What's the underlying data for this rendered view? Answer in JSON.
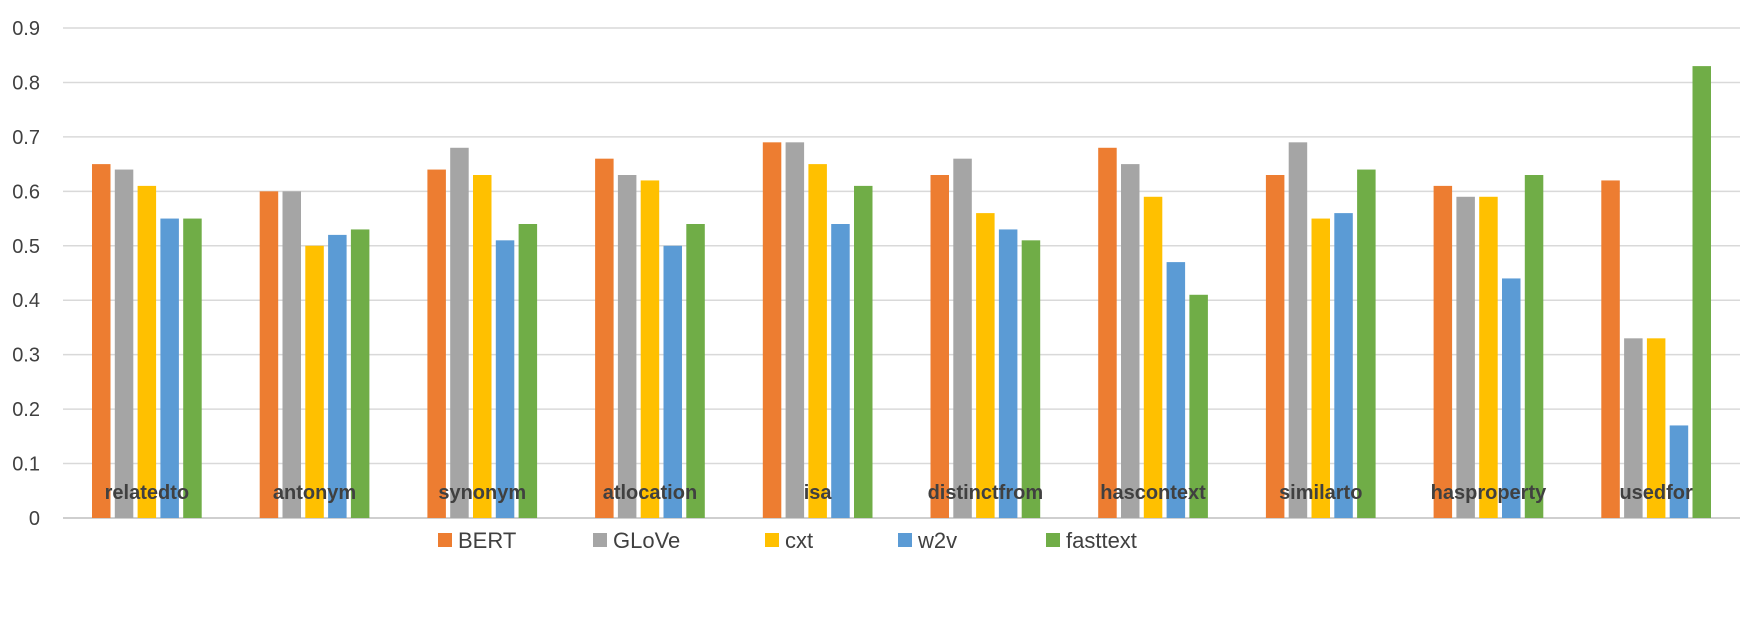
{
  "chart_data": {
    "type": "bar",
    "title": "",
    "xlabel": "",
    "ylabel": "",
    "ylim": [
      0,
      0.9
    ],
    "y_ticks": [
      "0",
      "0.1",
      "0.2",
      "0.3",
      "0.4",
      "0.5",
      "0.6",
      "0.7",
      "0.8",
      "0.9"
    ],
    "grid": true,
    "legend_position": "bottom",
    "categories": [
      "relatedto",
      "antonym",
      "synonym",
      "atlocation",
      "isa",
      "distinctfrom",
      "hascontext",
      "similarto",
      "hasproperty",
      "usedfor"
    ],
    "series": [
      {
        "name": "BERT",
        "color": "#ED7D31",
        "values": [
          0.65,
          0.6,
          0.64,
          0.66,
          0.69,
          0.63,
          0.68,
          0.63,
          0.61,
          0.62
        ]
      },
      {
        "name": "GLoVe",
        "color": "#A5A5A5",
        "values": [
          0.64,
          0.6,
          0.68,
          0.63,
          0.69,
          0.66,
          0.65,
          0.69,
          0.59,
          0.33
        ]
      },
      {
        "name": "cxt",
        "color": "#FFC000",
        "values": [
          0.61,
          0.5,
          0.63,
          0.62,
          0.65,
          0.56,
          0.59,
          0.55,
          0.59,
          0.33
        ]
      },
      {
        "name": "w2v",
        "color": "#5B9BD5",
        "values": [
          0.55,
          0.52,
          0.51,
          0.5,
          0.54,
          0.53,
          0.47,
          0.56,
          0.44,
          0.17
        ]
      },
      {
        "name": "fasttext",
        "color": "#70AD47",
        "values": [
          0.55,
          0.53,
          0.54,
          0.54,
          0.61,
          0.51,
          0.41,
          0.64,
          0.63,
          0.83
        ]
      }
    ]
  }
}
